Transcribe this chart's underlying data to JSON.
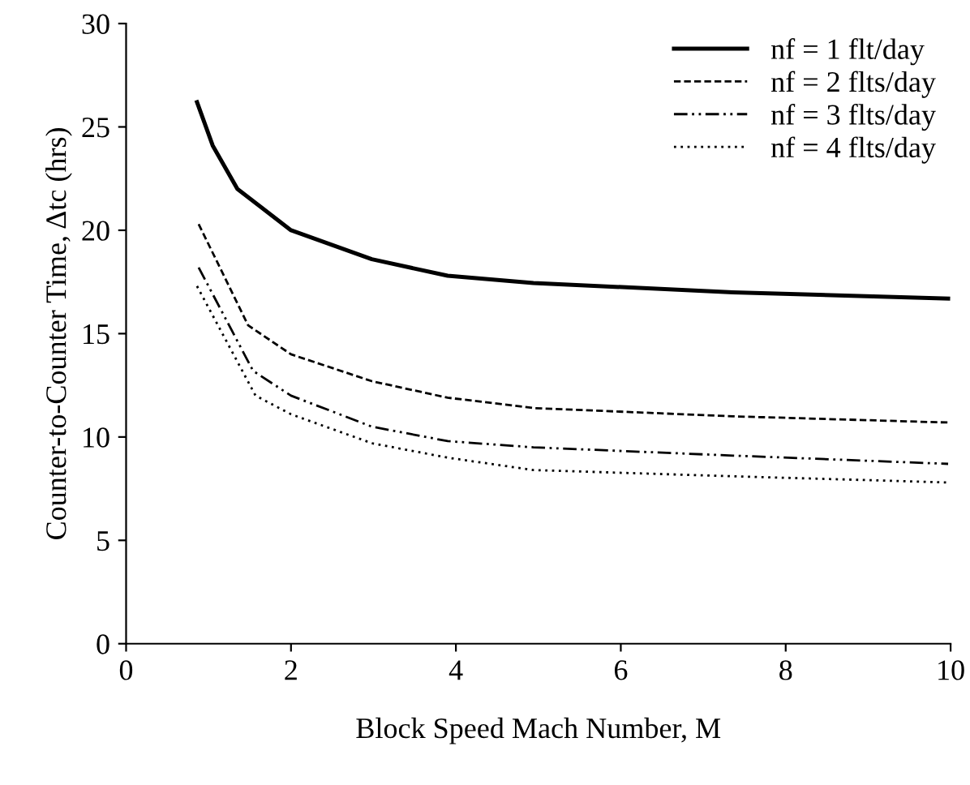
{
  "chart_data": {
    "type": "line",
    "xlabel": "Block Speed Mach Number, M",
    "ylabel": "Counter-to-Counter Time, Δtc (hrs)",
    "xlim": [
      0,
      10
    ],
    "xticks": [
      0,
      2,
      4,
      6,
      8,
      10
    ],
    "ylim": [
      0,
      30
    ],
    "yticks": [
      0,
      5,
      10,
      15,
      20,
      25,
      30
    ],
    "grid": false,
    "legend": "top right",
    "marker": "none",
    "series": [
      {
        "name": "nf = 1 flt/day",
        "color": "#000000",
        "line_style": "solid",
        "x": [
          0.86,
          1.05,
          1.35,
          2.0,
          2.98,
          3.9,
          4.94,
          7.36,
          9.97
        ],
        "values": [
          26.2,
          24.1,
          22.0,
          20.0,
          18.6,
          17.8,
          17.45,
          17.0,
          16.7
        ]
      },
      {
        "name": "nf = 2 flts/day",
        "color": "#000000",
        "line_style": "dashed",
        "x": [
          0.88,
          1.48,
          2.0,
          2.98,
          3.9,
          4.94,
          7.36,
          9.97
        ],
        "values": [
          20.3,
          15.4,
          14.0,
          12.7,
          11.9,
          11.4,
          11.0,
          10.7
        ]
      },
      {
        "name": "nf = 3 flts/day",
        "color": "#000000",
        "line_style": "dashdot",
        "x": [
          0.88,
          1.54,
          2.0,
          2.98,
          3.9,
          4.94,
          7.36,
          9.97
        ],
        "values": [
          18.2,
          13.2,
          12.0,
          10.5,
          9.8,
          9.5,
          9.1,
          8.7
        ]
      },
      {
        "name": "nf = 4 flts/day",
        "color": "#000000",
        "line_style": "dotted",
        "x": [
          0.86,
          1.57,
          2.0,
          2.98,
          3.9,
          4.94,
          7.36,
          9.97
        ],
        "values": [
          17.3,
          12.0,
          11.1,
          9.7,
          9.0,
          8.4,
          8.1,
          7.8
        ]
      }
    ]
  }
}
